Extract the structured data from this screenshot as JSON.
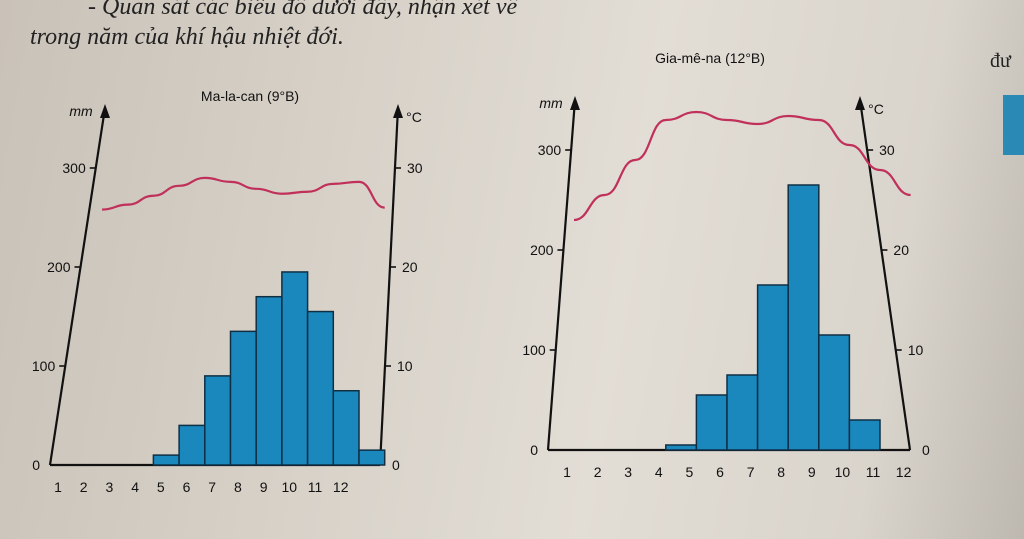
{
  "header": {
    "line1": "- Quan sát các biểu đồ dưới đây, nhận xét về",
    "line2": "trong năm của khí hậu nhiệt đới.",
    "side": "đư"
  },
  "chart_data": [
    {
      "type": "bar",
      "title": "Ma-la-can (9°B)",
      "left_unit": "mm",
      "right_unit": "°C",
      "categories": [
        "1",
        "2",
        "3",
        "4",
        "5",
        "6",
        "7",
        "8",
        "9",
        "10",
        "11",
        "12"
      ],
      "rain_ticks": [
        "0",
        "100",
        "200",
        "300"
      ],
      "temp_ticks": [
        "0",
        "10",
        "20",
        "30"
      ],
      "ylim_rain": [
        0,
        350
      ],
      "ylim_temp": [
        0,
        35
      ],
      "series": [
        {
          "values": [
            0,
            0,
            10,
            40,
            90,
            135,
            170,
            195,
            155,
            75,
            15,
            0
          ]
        },
        {
          "values": [
            25.8,
            26.3,
            27.2,
            28.2,
            29.0,
            28.6,
            27.9,
            27.4,
            27.6,
            28.4,
            28.6,
            26.0
          ]
        }
      ]
    },
    {
      "type": "bar",
      "title": "Gia-mê-na (12°B)",
      "left_unit": "mm",
      "right_unit": "°C",
      "categories": [
        "1",
        "2",
        "3",
        "4",
        "5",
        "6",
        "7",
        "8",
        "9",
        "10",
        "11",
        "12"
      ],
      "rain_ticks": [
        "0",
        "100",
        "200",
        "300"
      ],
      "temp_ticks": [
        "0",
        "10",
        "20",
        "30"
      ],
      "ylim_rain": [
        0,
        350
      ],
      "ylim_temp": [
        0,
        35
      ],
      "series": [
        {
          "values": [
            0,
            0,
            0,
            5,
            55,
            75,
            165,
            265,
            115,
            30,
            0,
            0
          ]
        },
        {
          "values": [
            23.0,
            25.5,
            29.0,
            33.0,
            33.8,
            33.0,
            32.6,
            33.4,
            33.0,
            30.5,
            28.0,
            25.5
          ]
        }
      ]
    }
  ],
  "colors": {
    "bar": "#1b88bd",
    "line": "#c0305a"
  }
}
